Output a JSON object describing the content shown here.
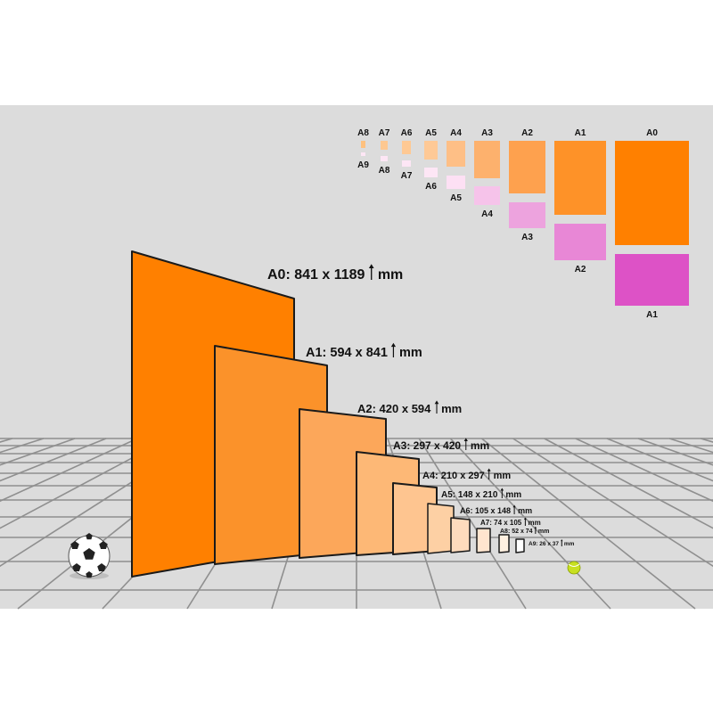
{
  "colors": {
    "background": "#dcdcdc",
    "grid_line": "#8f8f8f",
    "outline": "#1a1a1a"
  },
  "perspective_sheets": [
    {
      "size": "A0",
      "label": "A0: 841 x 1189",
      "unit": "mm",
      "color": "#ff8000"
    },
    {
      "size": "A1",
      "label": "A1: 594 x 841",
      "unit": "mm",
      "color": "#fb922a"
    },
    {
      "size": "A2",
      "label": "A2: 420 x 594",
      "unit": "mm",
      "color": "#fca75a"
    },
    {
      "size": "A3",
      "label": "A3: 297 x 420",
      "unit": "mm",
      "color": "#fdb876"
    },
    {
      "size": "A4",
      "label": "A4: 210 x 297",
      "unit": "mm",
      "color": "#fec590"
    },
    {
      "size": "A5",
      "label": "A5: 148 x 210",
      "unit": "mm",
      "color": "#fdd0a4"
    },
    {
      "size": "A6",
      "label": "A6: 105 x 148",
      "unit": "mm",
      "color": "#fedbbd"
    },
    {
      "size": "A7",
      "label": "A7: 74 x 105",
      "unit": "mm",
      "color": "#ffe5cf"
    },
    {
      "size": "A8",
      "label": "A8: 52 x 74",
      "unit": "mm",
      "color": "#fff0e0"
    },
    {
      "size": "A9",
      "label": "A9: 26 x 37",
      "unit": "mm",
      "color": "#ffffff"
    }
  ],
  "comparison_chart": [
    {
      "top_label": "A0",
      "top_color": "#ff8000",
      "bottom_label": "A1",
      "bottom_color": "#dd52c6"
    },
    {
      "top_label": "A1",
      "top_color": "#fe9228",
      "bottom_label": "A2",
      "bottom_color": "#e887d6"
    },
    {
      "top_label": "A2",
      "top_color": "#fea14e",
      "bottom_label": "A3",
      "bottom_color": "#eda3de"
    },
    {
      "top_label": "A3",
      "top_color": "#fdb16d",
      "bottom_label": "A4",
      "bottom_color": "#f6c3ea"
    },
    {
      "top_label": "A4",
      "top_color": "#febf86",
      "bottom_label": "A5",
      "bottom_color": "#fde0f4"
    },
    {
      "top_label": "A5",
      "top_color": "#fec996",
      "bottom_label": "A6",
      "bottom_color": "#fde6f5"
    },
    {
      "top_label": "A6",
      "top_color": "#fec994",
      "bottom_label": "A7",
      "bottom_color": "#fde6f5"
    },
    {
      "top_label": "A7",
      "top_color": "#fdc891",
      "bottom_label": "A8",
      "bottom_color": "#fde6f5"
    },
    {
      "top_label": "A8",
      "top_color": "#fec17f",
      "bottom_label": "A9",
      "bottom_color": "#fde6f5"
    }
  ],
  "decorations": [
    "soccer-ball",
    "tennis-ball"
  ]
}
